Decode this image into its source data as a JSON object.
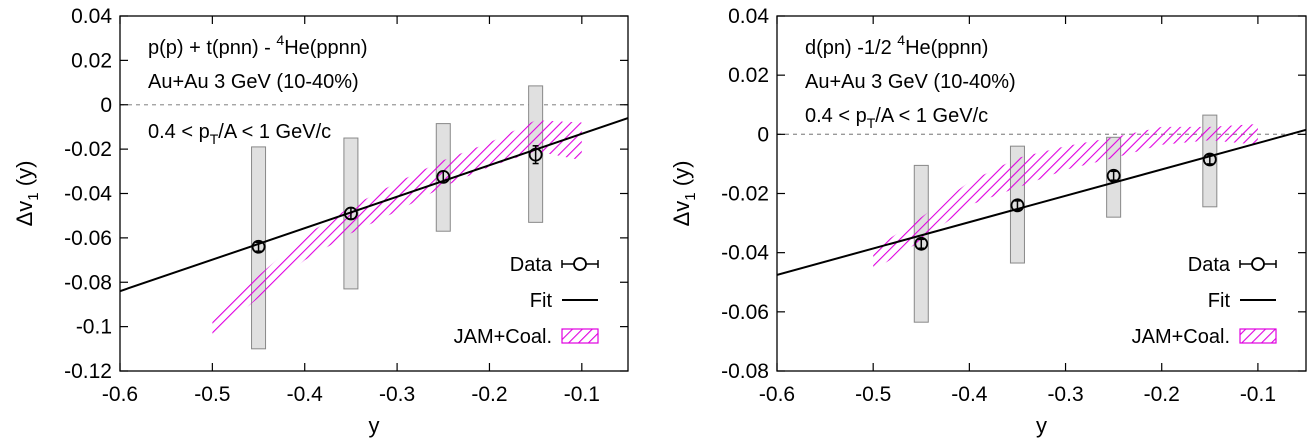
{
  "chart_data": [
    {
      "type": "line",
      "annotations": [
        "p(p) + t(pnn) - ",
        "4",
        "He(ppnn)"
      ],
      "subtitle": "Au+Au 3 GeV (10-40%)",
      "cut": {
        "pre": "0.4 < p",
        "sub": "T",
        "post": "/A < 1 GeV/c"
      },
      "xlabel": "y",
      "ylabel": {
        "main": "Δv",
        "sub": "1",
        "post": " (y)"
      },
      "xlim": [
        -0.6,
        -0.05
      ],
      "ylim": [
        -0.12,
        0.04
      ],
      "xticks": [
        -0.6,
        -0.5,
        -0.4,
        -0.3,
        -0.2,
        -0.1
      ],
      "xtick_labels": [
        "-0.6",
        "-0.5",
        "-0.4",
        "-0.3",
        "-0.2",
        "-0.1"
      ],
      "yticks": [
        -0.12,
        -0.1,
        -0.08,
        -0.06,
        -0.04,
        -0.02,
        0,
        0.02,
        0.04
      ],
      "ytick_labels": [
        "-0.12",
        "-0.1",
        "-0.08",
        "-0.06",
        "-0.04",
        "-0.02",
        "0",
        "0.02",
        "0.04"
      ],
      "data": {
        "x": [
          -0.45,
          -0.35,
          -0.25,
          -0.15
        ],
        "y": [
          -0.064,
          -0.049,
          -0.0325,
          -0.0225
        ],
        "stat_err": [
          0.002,
          0.0025,
          0.0025,
          0.004
        ],
        "sys_low": [
          -0.11,
          -0.083,
          -0.057,
          -0.053
        ],
        "sys_high": [
          -0.019,
          -0.015,
          -0.0085,
          0.0085
        ]
      },
      "fit": {
        "x": [
          -0.6,
          -0.05
        ],
        "y": [
          -0.084,
          -0.006
        ]
      },
      "model_band": {
        "x": [
          -0.5,
          -0.45,
          -0.4,
          -0.35,
          -0.3,
          -0.25,
          -0.2,
          -0.15,
          -0.1
        ],
        "y_low": [
          -0.104,
          -0.087,
          -0.07,
          -0.058,
          -0.048,
          -0.037,
          -0.028,
          -0.021,
          -0.025
        ],
        "y_high": [
          -0.097,
          -0.077,
          -0.059,
          -0.046,
          -0.035,
          -0.025,
          -0.017,
          -0.007,
          -0.008
        ]
      },
      "legend": {
        "position": "bottom-right",
        "entries": [
          "Data",
          "Fit",
          "JAM+Coal."
        ]
      },
      "colors": {
        "band": "#e000e0",
        "sys_fill": "#e0e0e0",
        "sys_stroke": "#888888",
        "zero_line": "#999999"
      }
    },
    {
      "type": "line",
      "annotations": [
        "d(pn) -1/2 ",
        "4",
        "He(ppnn)"
      ],
      "subtitle": "Au+Au 3 GeV (10-40%)",
      "cut": {
        "pre": "0.4 < p",
        "sub": "T",
        "post": "/A < 1 GeV/c"
      },
      "xlabel": "y",
      "ylabel": {
        "main": "Δv",
        "sub": "1",
        "post": " (y)"
      },
      "xlim": [
        -0.6,
        -0.05
      ],
      "ylim": [
        -0.08,
        0.04
      ],
      "xticks": [
        -0.6,
        -0.5,
        -0.4,
        -0.3,
        -0.2,
        -0.1
      ],
      "xtick_labels": [
        "-0.6",
        "-0.5",
        "-0.4",
        "-0.3",
        "-0.2",
        "-0.1"
      ],
      "yticks": [
        -0.08,
        -0.06,
        -0.04,
        -0.02,
        0,
        0.02,
        0.04
      ],
      "ytick_labels": [
        "-0.08",
        "-0.06",
        "-0.04",
        "-0.02",
        "0",
        "0.02",
        "0.04"
      ],
      "data": {
        "x": [
          -0.45,
          -0.35,
          -0.25,
          -0.15
        ],
        "y": [
          -0.037,
          -0.024,
          -0.014,
          -0.0085
        ],
        "stat_err": [
          0.0015,
          0.0015,
          0.0015,
          0.0015
        ],
        "sys_low": [
          -0.0635,
          -0.0435,
          -0.028,
          -0.0245
        ],
        "sys_high": [
          -0.0105,
          -0.004,
          -0.001,
          0.0065
        ]
      },
      "fit": {
        "x": [
          -0.6,
          -0.05
        ],
        "y": [
          -0.0475,
          0.0015
        ]
      },
      "model_band": {
        "x": [
          -0.5,
          -0.45,
          -0.4,
          -0.35,
          -0.3,
          -0.25,
          -0.2,
          -0.15,
          -0.1
        ],
        "y_low": [
          -0.046,
          -0.036,
          -0.024,
          -0.018,
          -0.012,
          -0.008,
          -0.0035,
          -0.002,
          -0.0035
        ],
        "y_high": [
          -0.039,
          -0.028,
          -0.016,
          -0.008,
          -0.004,
          -0.001,
          0.0025,
          0.0025,
          0.0035
        ]
      },
      "legend": {
        "position": "bottom-right",
        "entries": [
          "Data",
          "Fit",
          "JAM+Coal."
        ]
      },
      "colors": {
        "band": "#e000e0",
        "sys_fill": "#e0e0e0",
        "sys_stroke": "#888888",
        "zero_line": "#999999"
      }
    }
  ]
}
